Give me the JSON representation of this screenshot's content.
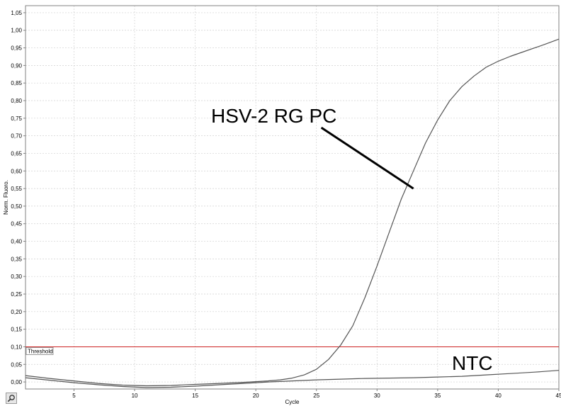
{
  "toolbar": {
    "tool_icon": "zoom-reset-icon"
  },
  "colors": {
    "curve": "#555555",
    "threshold": "#cc2222",
    "grid": "#d0d0d0",
    "axis": "#808080"
  },
  "chart_data": {
    "type": "line",
    "xlabel": "Cycle",
    "ylabel": "Norm. Fluoro.",
    "xlim": [
      1,
      45
    ],
    "ylim": [
      -0.02,
      1.07
    ],
    "x_ticks": [
      5,
      10,
      15,
      20,
      25,
      30,
      35,
      40,
      45
    ],
    "x_tick_labels": [
      "5",
      "10",
      "15",
      "20",
      "25",
      "30",
      "35",
      "40",
      "45"
    ],
    "y_ticks": [
      0.0,
      0.05,
      0.1,
      0.15,
      0.2,
      0.25,
      0.3,
      0.35,
      0.4,
      0.45,
      0.5,
      0.55,
      0.6,
      0.65,
      0.7,
      0.75,
      0.8,
      0.85,
      0.9,
      0.95,
      1.0,
      1.05
    ],
    "y_tick_labels": [
      "0,00",
      "0,05",
      "0,10",
      "0,15",
      "0,20",
      "0,25",
      "0,30",
      "0,35",
      "0,40",
      "0,45",
      "0,50",
      "0,55",
      "0,60",
      "0,65",
      "0,70",
      "0,75",
      "0,80",
      "0,85",
      "0,90",
      "0,95",
      "1,00",
      "1,05"
    ],
    "grid": true,
    "threshold": {
      "label": "Threshold",
      "value": 0.1
    },
    "series": [
      {
        "x": [
          1,
          3,
          5,
          7,
          9,
          11,
          13,
          15,
          17,
          19,
          20,
          21,
          22,
          23,
          24,
          25,
          26,
          27,
          28,
          29,
          30,
          31,
          32,
          33,
          34,
          35,
          36,
          37,
          38,
          39,
          40,
          41,
          42,
          43,
          44,
          45
        ],
        "y": [
          0.018,
          0.01,
          0.003,
          -0.004,
          -0.009,
          -0.011,
          -0.01,
          -0.007,
          -0.004,
          -0.001,
          0.001,
          0.003,
          0.006,
          0.011,
          0.02,
          0.036,
          0.064,
          0.105,
          0.16,
          0.24,
          0.33,
          0.425,
          0.52,
          0.6,
          0.68,
          0.745,
          0.8,
          0.84,
          0.87,
          0.895,
          0.912,
          0.926,
          0.938,
          0.95,
          0.962,
          0.975
        ]
      },
      {
        "x": [
          1,
          3,
          5,
          7,
          9,
          11,
          13,
          15,
          17,
          19,
          21,
          23,
          25,
          27,
          29,
          31,
          33,
          35,
          37,
          39,
          41,
          43,
          45
        ],
        "y": [
          0.012,
          0.005,
          -0.002,
          -0.008,
          -0.013,
          -0.016,
          -0.015,
          -0.012,
          -0.008,
          -0.004,
          0.0,
          0.003,
          0.006,
          0.008,
          0.01,
          0.011,
          0.012,
          0.014,
          0.016,
          0.02,
          0.024,
          0.028,
          0.033
        ]
      }
    ],
    "annotations": [
      {
        "text": "HSV-2 RG PC",
        "target_x": 33,
        "target_y": 0.55
      },
      {
        "text": "NTC"
      }
    ]
  }
}
